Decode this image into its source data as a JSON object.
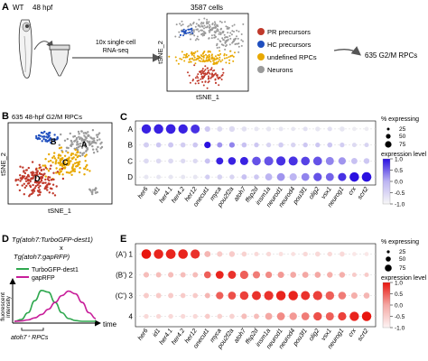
{
  "panel_a": {
    "letter": "A",
    "wt_label": "WT",
    "stage_label": "48 hpf",
    "step_label_line1": "10x single-cell",
    "step_label_line2": "RNA-seq",
    "cells_label": "3587 cells",
    "axis_y": "tSNE_2",
    "axis_x": "tSNE_1",
    "legend": [
      {
        "label": "PR precursors",
        "color": "#c0392b"
      },
      {
        "label": "HC precursors",
        "color": "#1f4fbf"
      },
      {
        "label": "undefined RPCs",
        "color": "#e8a800"
      },
      {
        "label": "Neurons",
        "color": "#9a9a9a"
      }
    ],
    "result_label": "635 G2/M RPCs"
  },
  "panel_b": {
    "letter": "B",
    "title": "635 48-hpf G2/M RPCs",
    "axis_y": "tSNE_2",
    "axis_x": "tSNE_1",
    "cluster_labels": [
      "A",
      "B",
      "C",
      "D"
    ],
    "cluster_colors": {
      "A": "#9a9a9a",
      "B": "#1f4fbf",
      "C": "#e8a800",
      "D": "#c0392b"
    }
  },
  "panel_c": {
    "letter": "C",
    "rows": [
      "A",
      "B",
      "C",
      "D"
    ],
    "genes": [
      "her6",
      "id1",
      "her4.1",
      "her4.2",
      "her12",
      "onecut1",
      "myca",
      "pou2f2a",
      "atoh7",
      "ffsp2d",
      "insm1a",
      "neurod1",
      "neurod4",
      "pou3f1",
      "olig2",
      "vsx1",
      "neurog1",
      "crx",
      "scrt2"
    ],
    "size_legend_title": "% expressing",
    "size_legend_values": [
      "25",
      "50",
      "75"
    ],
    "color_legend_title": "expression level",
    "color_legend_ticks": [
      "1.0",
      "0.5",
      "0.0",
      "-0.5",
      "-1.0"
    ],
    "colors": {
      "high": "#2a10e0",
      "mid": "#bdb5f2",
      "low": "#f2f2f2"
    }
  },
  "panel_d": {
    "letter": "D",
    "title_line1": "Tg(atoh7:TurboGFP-dest1)",
    "title_x": "x",
    "title_line2": "Tg(atoh7:gapRFP)",
    "legend": [
      {
        "label": "TurboGFP-dest1",
        "color": "#2fa84f"
      },
      {
        "label": "gapRFP",
        "color": "#c81e9a"
      }
    ],
    "axis_y_line1": "fluorescent",
    "axis_y_line2": "intensity",
    "axis_x": "time",
    "bracket_label": "atoh7⁺ RPCs"
  },
  "panel_e": {
    "letter": "E",
    "rows": [
      "(A') 1",
      "(B') 2",
      "(C') 3",
      "4"
    ],
    "genes": [
      "her6",
      "id1",
      "her4.1",
      "her4.2",
      "her12",
      "onecut1",
      "myca",
      "pou2f2a",
      "atoh7",
      "ffsp2d",
      "insm1a",
      "neurod1",
      "neurod4",
      "pou3f1",
      "olig2",
      "vsx1",
      "neurog1",
      "crx",
      "scrt2"
    ],
    "size_legend_title": "% expressing",
    "size_legend_values": [
      "25",
      "50",
      "75"
    ],
    "color_legend_title": "expression level",
    "color_legend_ticks": [
      "1.0",
      "0.5",
      "0.0",
      "-0.5",
      "-1.0"
    ],
    "colors": {
      "high": "#e8150e",
      "mid": "#f4a8a4",
      "low": "#fbeeee"
    }
  },
  "chart_data": [
    {
      "type": "scatter",
      "title": "635 48-hpf G2/M RPCs",
      "xlabel": "tSNE_1",
      "ylabel": "tSNE_2",
      "series": [
        {
          "name": "A",
          "values": []
        },
        {
          "name": "B",
          "values": []
        },
        {
          "name": "C",
          "values": []
        },
        {
          "name": "D",
          "values": []
        }
      ]
    },
    {
      "type": "heatmap",
      "categories": [
        "her6",
        "id1",
        "her4.1",
        "her4.2",
        "her12",
        "onecut1",
        "myca",
        "pou2f2a",
        "atoh7",
        "ffsp2d",
        "insm1a",
        "neurod1",
        "neurod4",
        "pou3f1",
        "olig2",
        "vsx1",
        "neurog1",
        "crx",
        "scrt2"
      ],
      "rows": [
        "A",
        "B",
        "C",
        "D"
      ],
      "pct": [
        [
          68,
          70,
          72,
          68,
          62,
          20,
          18,
          22,
          16,
          12,
          14,
          12,
          10,
          12,
          14,
          12,
          16,
          10,
          10
        ],
        [
          18,
          16,
          18,
          16,
          16,
          30,
          18,
          20,
          16,
          14,
          14,
          16,
          14,
          14,
          14,
          16,
          14,
          12,
          12
        ],
        [
          16,
          16,
          16,
          14,
          14,
          18,
          36,
          44,
          50,
          58,
          64,
          66,
          64,
          58,
          60,
          50,
          40,
          26,
          22
        ],
        [
          12,
          12,
          12,
          12,
          12,
          14,
          16,
          14,
          18,
          16,
          36,
          46,
          40,
          46,
          52,
          48,
          50,
          70,
          72
        ]
      ],
      "expr": [
        [
          0.9,
          0.9,
          0.9,
          0.9,
          0.8,
          -0.3,
          -0.6,
          -0.6,
          -0.7,
          -0.8,
          -0.8,
          -0.8,
          -0.8,
          -0.7,
          -0.8,
          -0.7,
          -0.8,
          -0.9,
          -0.9
        ],
        [
          -0.4,
          -0.3,
          -0.3,
          -0.4,
          -0.3,
          1.0,
          0.2,
          0.3,
          -0.2,
          -0.3,
          -0.5,
          -0.4,
          -0.5,
          -0.3,
          -0.3,
          -0.3,
          -0.4,
          -0.6,
          -0.5
        ],
        [
          -0.6,
          -0.6,
          -0.6,
          -0.6,
          -0.6,
          -0.2,
          0.9,
          0.9,
          0.9,
          0.6,
          0.6,
          0.8,
          0.8,
          0.7,
          0.6,
          0.3,
          0.2,
          -0.2,
          -0.3
        ],
        [
          -0.8,
          -0.8,
          -0.8,
          -0.8,
          -0.8,
          -0.4,
          -0.5,
          -0.5,
          -0.2,
          -0.3,
          0.0,
          0.2,
          0.0,
          0.3,
          0.6,
          0.5,
          0.8,
          1.0,
          1.0
        ]
      ],
      "size_legend_title": "% expressing",
      "color_legend_title": "expression level",
      "clim": [
        -1.0,
        1.0
      ]
    },
    {
      "type": "line",
      "xlabel": "time",
      "ylabel": "fluorescent intensity",
      "x": [
        0,
        1,
        2,
        3,
        4,
        5,
        6,
        7,
        8,
        9,
        10,
        11,
        12
      ],
      "series": [
        {
          "name": "TurboGFP-dest1",
          "values": [
            0,
            0.05,
            0.25,
            0.6,
            0.9,
            0.85,
            0.55,
            0.25,
            0.08,
            0.02,
            0,
            0,
            0
          ]
        },
        {
          "name": "gapRFP",
          "values": [
            0,
            0.01,
            0.04,
            0.1,
            0.2,
            0.35,
            0.55,
            0.75,
            0.88,
            0.8,
            0.55,
            0.25,
            0.08
          ]
        }
      ]
    },
    {
      "type": "heatmap",
      "categories": [
        "her6",
        "id1",
        "her4.1",
        "her4.2",
        "her12",
        "onecut1",
        "myca",
        "pou2f2a",
        "atoh7",
        "ffsp2d",
        "insm1a",
        "neurod1",
        "neurod4",
        "pou3f1",
        "olig2",
        "vsx1",
        "neurog1",
        "crx",
        "scrt2"
      ],
      "rows": [
        "(A') 1",
        "(B') 2",
        "(C') 3",
        "4"
      ],
      "pct": [
        [
          72,
          70,
          74,
          72,
          66,
          26,
          20,
          22,
          16,
          12,
          14,
          12,
          10,
          14,
          16,
          14,
          16,
          10,
          10
        ],
        [
          20,
          18,
          20,
          18,
          18,
          34,
          46,
          48,
          52,
          38,
          30,
          28,
          24,
          26,
          24,
          22,
          22,
          12,
          12
        ],
        [
          18,
          18,
          18,
          16,
          16,
          18,
          40,
          46,
          56,
          62,
          66,
          70,
          70,
          62,
          66,
          56,
          44,
          28,
          24
        ],
        [
          14,
          14,
          14,
          14,
          14,
          16,
          16,
          16,
          20,
          18,
          36,
          46,
          42,
          46,
          54,
          50,
          52,
          68,
          70
        ]
      ],
      "expr": [
        [
          1.0,
          0.9,
          0.9,
          0.9,
          0.8,
          -0.2,
          -0.5,
          -0.5,
          -0.6,
          -0.7,
          -0.7,
          -0.8,
          -0.8,
          -0.7,
          -0.7,
          -0.7,
          -0.7,
          -0.9,
          -0.9
        ],
        [
          -0.3,
          -0.3,
          -0.3,
          -0.3,
          -0.3,
          0.5,
          0.9,
          0.8,
          0.5,
          0.3,
          0.2,
          0.1,
          0.0,
          0.0,
          0.0,
          -0.1,
          -0.1,
          -0.5,
          -0.5
        ],
        [
          -0.5,
          -0.5,
          -0.5,
          -0.5,
          -0.5,
          -0.2,
          0.5,
          0.6,
          0.7,
          0.8,
          0.8,
          0.9,
          0.9,
          0.8,
          0.7,
          0.5,
          0.3,
          -0.1,
          -0.2
        ],
        [
          -0.7,
          -0.7,
          -0.7,
          -0.7,
          -0.7,
          -0.5,
          -0.6,
          -0.6,
          -0.3,
          -0.3,
          0.0,
          0.2,
          0.1,
          0.3,
          0.6,
          0.5,
          0.7,
          0.9,
          1.0
        ]
      ],
      "size_legend_title": "% expressing",
      "color_legend_title": "expression level",
      "clim": [
        -1.0,
        1.0
      ]
    }
  ]
}
